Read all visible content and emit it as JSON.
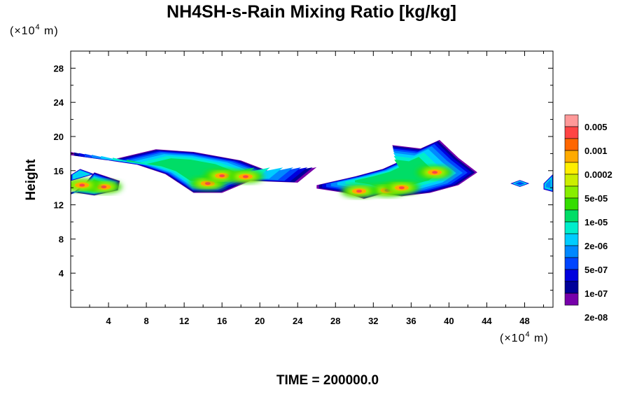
{
  "chart_data": {
    "type": "heatmap",
    "title": "NH4SH-s-Rain Mixing Ratio [kg/kg]",
    "ylabel": "Height",
    "x_unit": {
      "prefix": "(×10",
      "exp": "4",
      "suffix": " m)"
    },
    "y_unit": {
      "prefix": "(×10",
      "exp": "4",
      "suffix": " m)"
    },
    "xlim": [
      0,
      51
    ],
    "ylim": [
      0,
      30
    ],
    "x_ticks": [
      4,
      8,
      12,
      16,
      20,
      24,
      28,
      32,
      36,
      40,
      44,
      48
    ],
    "y_ticks": [
      4,
      8,
      12,
      16,
      20,
      24,
      28
    ],
    "time_label": "TIME = 200000.0",
    "colorbar": {
      "labels": [
        "0.005",
        "0.001",
        "0.0002",
        "5e-05",
        "1e-05",
        "2e-06",
        "5e-07",
        "1e-07",
        "2e-08"
      ],
      "colors": [
        "#ff9999",
        "#ff4444",
        "#ff6600",
        "#ffaa00",
        "#ffee00",
        "#ccee00",
        "#88ee00",
        "#33dd00",
        "#00dd66",
        "#00eecc",
        "#00ccff",
        "#0088ff",
        "#0044ff",
        "#0000dd",
        "#000099",
        "#7700aa"
      ]
    },
    "features": [
      {
        "x": [
          0,
          1.5,
          2.5,
          5.2,
          5,
          2.5,
          0
        ],
        "y": [
          13.2,
          14.5,
          15.8,
          14.8,
          13.7,
          13.1,
          13.5
        ],
        "level": 8,
        "hot": [
          [
            3.5,
            14.1
          ],
          [
            1.2,
            14.3
          ]
        ]
      },
      {
        "x": [
          0,
          1,
          2.5,
          0
        ],
        "y": [
          15.5,
          16.2,
          15.6,
          14.8
        ],
        "level": 10,
        "hot": []
      },
      {
        "x": [
          0,
          4,
          9,
          13,
          18,
          22,
          26,
          24,
          19,
          16,
          13,
          10,
          7,
          4,
          0
        ],
        "y": [
          18.2,
          17.2,
          18.5,
          18.2,
          17.2,
          15.5,
          16.4,
          14.6,
          14.8,
          13.4,
          13.4,
          15.6,
          16.7,
          17.2,
          17.8
        ],
        "level": 8,
        "hot": [
          [
            14.5,
            14.5
          ],
          [
            16,
            15.4
          ],
          [
            18.5,
            15.3
          ]
        ]
      },
      {
        "x": [
          26,
          30,
          33,
          35,
          34,
          37,
          39,
          41,
          43,
          41,
          38,
          35,
          33,
          31,
          29,
          26
        ],
        "y": [
          14.3,
          15.3,
          16.2,
          17.2,
          19,
          18.6,
          19.6,
          17.5,
          15.8,
          14.3,
          13.4,
          13,
          13.3,
          12.7,
          13.4,
          13.9
        ],
        "level": 8,
        "hot": [
          [
            33.5,
            13.7
          ],
          [
            35,
            14
          ],
          [
            38.5,
            15.8
          ],
          [
            30.5,
            13.6
          ]
        ]
      },
      {
        "x": [
          46.5,
          47.5,
          48.5,
          47.5
        ],
        "y": [
          14.5,
          14.9,
          14.5,
          14.1
        ],
        "level": 12,
        "hot": []
      },
      {
        "x": [
          50,
          51,
          51,
          50
        ],
        "y": [
          14.5,
          15.6,
          13.5,
          13.8
        ],
        "level": 11,
        "hot": []
      }
    ]
  }
}
